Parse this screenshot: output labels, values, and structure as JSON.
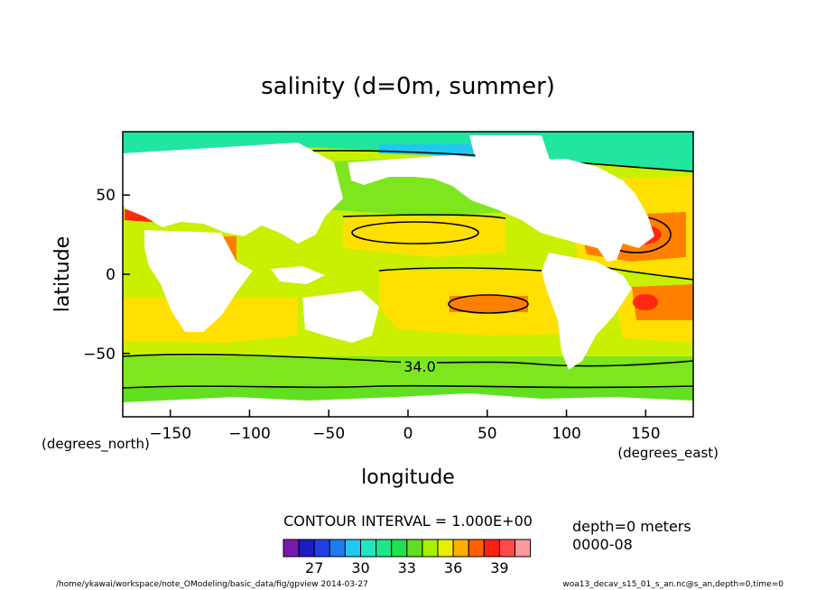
{
  "chart_data": {
    "type": "heatmap",
    "title": "salinity (d=0m, summer)",
    "xlabel": "longitude",
    "ylabel": "latitude",
    "x_unit": "(degrees_east)",
    "y_unit": "(degrees_north)",
    "xlim": [
      -180,
      180
    ],
    "ylim": [
      -90,
      90
    ],
    "x_ticks": [
      -150,
      -100,
      -50,
      0,
      50,
      100,
      150
    ],
    "y_ticks": [
      -50,
      0,
      50
    ],
    "contour_interval_text": "CONTOUR INTERVAL = 1.000E+00",
    "contour_label": "34.0",
    "colorbar": {
      "colors": [
        "#7a18b4",
        "#1b1bc8",
        "#1e3fe6",
        "#1f7bf0",
        "#1fc8f0",
        "#1fe6c0",
        "#1ee68c",
        "#20e050",
        "#60e020",
        "#a8f000",
        "#e8f000",
        "#ffb000",
        "#ff6000",
        "#ff2010",
        "#ff4a4a",
        "#ff9a9a"
      ],
      "tick_labels": [
        "27",
        "30",
        "33",
        "36",
        "39"
      ]
    },
    "notes": [
      "depth=0 meters",
      "0000-08"
    ],
    "footer_left": "/home/ykawai/workspace/note_OModeling/basic_data/fig/gpview   2014-03-27",
    "footer_right": "woa13_decav_s15_01_s_an.nc@s_an,depth=0,time=0",
    "field_colors": {
      "ocean_base": "#c8f000",
      "fresh_band": "#7ee61e",
      "salty": "#ffe000",
      "very_salty": "#ff8000",
      "max_salty": "#ff2810",
      "arctic": "#20e6a0",
      "arctic_low": "#1ec8f0",
      "land": "#ffffff"
    }
  }
}
